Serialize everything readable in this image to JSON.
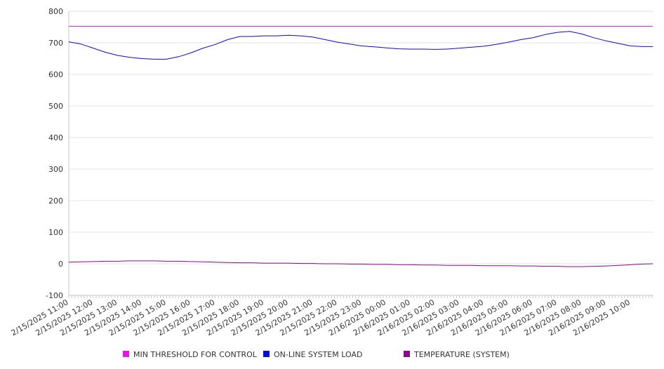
{
  "chart_data": {
    "type": "line",
    "title": "",
    "xlabel": "",
    "ylabel": "",
    "ylim": [
      -100,
      800
    ],
    "y_ticks": [
      800,
      700,
      600,
      500,
      400,
      300,
      200,
      100,
      0,
      -100
    ],
    "x_tick_labels": [
      "2/15/2025 11:00",
      "2/15/2025 12:00",
      "2/15/2025 13:00",
      "2/15/2025 14:00",
      "2/15/2025 15:00",
      "2/15/2025 16:00",
      "2/15/2025 17:00",
      "2/15/2025 18:00",
      "2/15/2025 19:00",
      "2/15/2025 20:00",
      "2/15/2025 21:00",
      "2/15/2025 22:00",
      "2/15/2025 23:00",
      "2/16/2025 00:00",
      "2/16/2025 01:00",
      "2/16/2025 02:00",
      "2/16/2025 03:00",
      "2/16/2025 04:00",
      "2/16/2025 05:00",
      "2/16/2025 06:00",
      "2/16/2025 07:00",
      "2/16/2025 08:00",
      "2/16/2025 09:00",
      "2/16/2025 10:00"
    ],
    "x": [
      "2/15/2025 11:00",
      "2/15/2025 11:30",
      "2/15/2025 12:00",
      "2/15/2025 12:30",
      "2/15/2025 13:00",
      "2/15/2025 13:30",
      "2/15/2025 14:00",
      "2/15/2025 14:30",
      "2/15/2025 15:00",
      "2/15/2025 15:30",
      "2/15/2025 16:00",
      "2/15/2025 16:30",
      "2/15/2025 17:00",
      "2/15/2025 17:30",
      "2/15/2025 18:00",
      "2/15/2025 18:30",
      "2/15/2025 19:00",
      "2/15/2025 19:30",
      "2/15/2025 20:00",
      "2/15/2025 20:30",
      "2/15/2025 21:00",
      "2/15/2025 21:30",
      "2/15/2025 22:00",
      "2/15/2025 22:30",
      "2/15/2025 23:00",
      "2/15/2025 23:30",
      "2/16/2025 00:00",
      "2/16/2025 00:30",
      "2/16/2025 01:00",
      "2/16/2025 01:30",
      "2/16/2025 02:00",
      "2/16/2025 02:30",
      "2/16/2025 03:00",
      "2/16/2025 03:30",
      "2/16/2025 04:00",
      "2/16/2025 04:30",
      "2/16/2025 05:00",
      "2/16/2025 05:30",
      "2/16/2025 06:00",
      "2/16/2025 06:30",
      "2/16/2025 07:00",
      "2/16/2025 07:30",
      "2/16/2025 08:00",
      "2/16/2025 08:30",
      "2/16/2025 09:00",
      "2/16/2025 09:30",
      "2/16/2025 10:00",
      "2/16/2025 10:30",
      "2/16/2025 10:55"
    ],
    "series": [
      {
        "name": "MIN THRESHOLD FOR CONTROL",
        "color": "#e11ae1",
        "values": [
          752,
          752,
          752,
          752,
          752,
          752,
          752,
          752,
          752,
          752,
          752,
          752,
          752,
          752,
          752,
          752,
          752,
          752,
          752,
          752,
          752,
          752,
          752,
          752,
          752,
          752,
          752,
          752,
          752,
          752,
          752,
          752,
          752,
          752,
          752,
          752,
          752,
          752,
          752,
          752,
          752,
          752,
          752,
          752,
          752,
          752,
          752,
          752,
          752
        ]
      },
      {
        "name": "ON-LINE SYSTEM LOAD",
        "color": "#0a0ad2",
        "values": [
          703,
          696,
          683,
          670,
          660,
          654,
          650,
          648,
          648,
          656,
          668,
          683,
          695,
          710,
          720,
          720,
          722,
          722,
          724,
          722,
          718,
          710,
          702,
          696,
          690,
          687,
          684,
          681,
          680,
          680,
          679,
          680,
          683,
          686,
          689,
          695,
          702,
          710,
          716,
          726,
          733,
          736,
          728,
          716,
          706,
          698,
          690,
          688,
          688
        ]
      },
      {
        "name": "TEMPERATURE (SYSTEM)",
        "color": "#8a0a8a",
        "values": [
          5,
          6,
          7,
          8,
          8,
          9,
          9,
          9,
          8,
          8,
          7,
          6,
          5,
          4,
          3,
          3,
          2,
          2,
          2,
          1,
          1,
          0,
          0,
          -1,
          -1,
          -2,
          -2,
          -3,
          -3,
          -4,
          -4,
          -5,
          -5,
          -5,
          -6,
          -6,
          -6,
          -7,
          -7,
          -8,
          -8,
          -9,
          -9,
          -8,
          -7,
          -5,
          -3,
          -1,
          0
        ]
      }
    ],
    "grid": true,
    "legend_position": "bottom"
  }
}
